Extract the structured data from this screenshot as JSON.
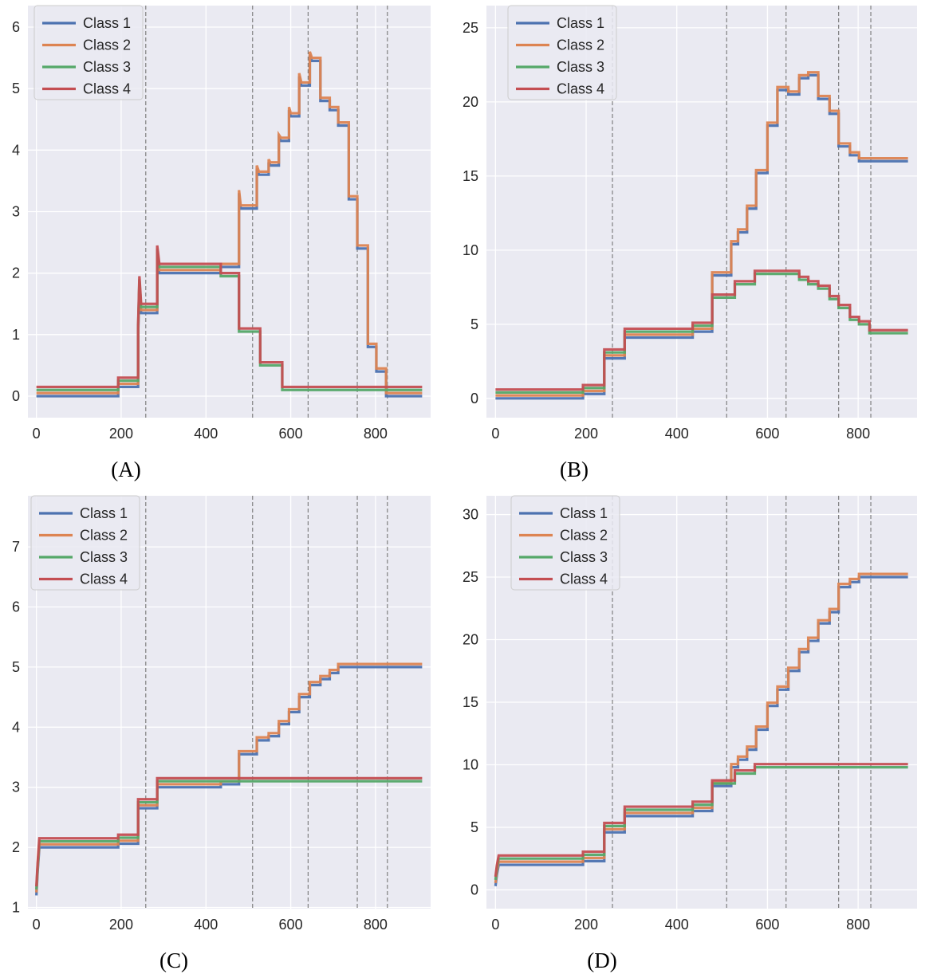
{
  "colors": {
    "background": "#eaeaf2",
    "grid": "#ffffff",
    "vline": "#808080",
    "class_colors": [
      "#4c72b0",
      "#dd8452",
      "#55a868",
      "#c44e52"
    ]
  },
  "chart_data": [
    {
      "type": "line",
      "label": "(A)",
      "series_names": [
        "Class 1",
        "Class 2",
        "Class 3",
        "Class 4"
      ],
      "xlim": [
        -20,
        930
      ],
      "ylim": [
        -0.35,
        6.35
      ],
      "xticks": [
        0,
        200,
        400,
        600,
        800
      ],
      "yticks": [
        0,
        1,
        2,
        3,
        4,
        5,
        6
      ],
      "vlines": [
        258,
        510,
        641,
        757,
        828
      ],
      "legend": "top-left",
      "offsets": [
        0.0,
        0.05,
        0.1,
        0.15
      ],
      "groups": [
        {
          "members": [
            0,
            1
          ],
          "points": [
            [
              0,
              0
            ],
            [
              193,
              0
            ],
            [
              193,
              0.15
            ],
            [
              240,
              0.15
            ],
            [
              240,
              1.0
            ],
            [
              243,
              1.8
            ],
            [
              247,
              1.35
            ],
            [
              285,
              1.35
            ],
            [
              285,
              2.2
            ],
            [
              290,
              2.0
            ],
            [
              435,
              2.0
            ],
            [
              435,
              2.1
            ],
            [
              478,
              2.1
            ],
            [
              478,
              3.3
            ],
            [
              482,
              3.05
            ],
            [
              520,
              3.05
            ],
            [
              520,
              3.7
            ],
            [
              525,
              3.6
            ],
            [
              548,
              3.6
            ],
            [
              548,
              3.8
            ],
            [
              552,
              3.75
            ],
            [
              572,
              3.75
            ],
            [
              572,
              4.2
            ],
            [
              577,
              4.15
            ],
            [
              596,
              4.15
            ],
            [
              596,
              4.65
            ],
            [
              600,
              4.55
            ],
            [
              620,
              4.55
            ],
            [
              620,
              5.2
            ],
            [
              625,
              5.05
            ],
            [
              645,
              5.05
            ],
            [
              645,
              5.55
            ],
            [
              650,
              5.45
            ],
            [
              670,
              5.45
            ],
            [
              670,
              4.8
            ],
            [
              692,
              4.8
            ],
            [
              692,
              4.65
            ],
            [
              712,
              4.65
            ],
            [
              712,
              4.4
            ],
            [
              737,
              4.4
            ],
            [
              737,
              3.2
            ],
            [
              757,
              3.2
            ],
            [
              757,
              2.4
            ],
            [
              782,
              2.4
            ],
            [
              782,
              0.8
            ],
            [
              802,
              0.8
            ],
            [
              802,
              0.4
            ],
            [
              825,
              0.4
            ],
            [
              825,
              0
            ],
            [
              910,
              0
            ]
          ]
        },
        {
          "members": [
            2,
            3
          ],
          "points": [
            [
              0,
              0
            ],
            [
              193,
              0
            ],
            [
              193,
              0.15
            ],
            [
              240,
              0.15
            ],
            [
              240,
              1.0
            ],
            [
              243,
              1.8
            ],
            [
              247,
              1.35
            ],
            [
              285,
              1.35
            ],
            [
              285,
              2.3
            ],
            [
              290,
              2.0
            ],
            [
              435,
              2.0
            ],
            [
              435,
              1.85
            ],
            [
              478,
              1.85
            ],
            [
              478,
              0.95
            ],
            [
              528,
              0.95
            ],
            [
              528,
              0.4
            ],
            [
              580,
              0.4
            ],
            [
              580,
              0
            ],
            [
              910,
              0
            ]
          ]
        }
      ]
    },
    {
      "type": "line",
      "label": "(B)",
      "series_names": [
        "Class 1",
        "Class 2",
        "Class 3",
        "Class 4"
      ],
      "xlim": [
        -20,
        930
      ],
      "ylim": [
        -1.3,
        26.5
      ],
      "xticks": [
        0,
        200,
        400,
        600,
        800
      ],
      "yticks": [
        0,
        5,
        10,
        15,
        20,
        25
      ],
      "vlines": [
        258,
        510,
        641,
        757,
        828
      ],
      "legend": "top-left",
      "offsets": [
        0.0,
        0.2,
        0.4,
        0.6
      ],
      "groups": [
        {
          "members": [
            0,
            1
          ],
          "points": [
            [
              0,
              0
            ],
            [
              193,
              0
            ],
            [
              193,
              0.3
            ],
            [
              240,
              0.3
            ],
            [
              240,
              2.7
            ],
            [
              285,
              2.7
            ],
            [
              285,
              4.1
            ],
            [
              435,
              4.1
            ],
            [
              435,
              4.5
            ],
            [
              478,
              4.5
            ],
            [
              478,
              8.3
            ],
            [
              520,
              8.3
            ],
            [
              520,
              10.4
            ],
            [
              535,
              10.4
            ],
            [
              535,
              11.2
            ],
            [
              555,
              11.2
            ],
            [
              555,
              12.8
            ],
            [
              575,
              12.8
            ],
            [
              575,
              15.2
            ],
            [
              600,
              15.2
            ],
            [
              600,
              18.4
            ],
            [
              622,
              18.4
            ],
            [
              622,
              20.8
            ],
            [
              646,
              20.8
            ],
            [
              646,
              20.5
            ],
            [
              670,
              20.5
            ],
            [
              670,
              21.6
            ],
            [
              690,
              21.6
            ],
            [
              690,
              21.8
            ],
            [
              712,
              21.8
            ],
            [
              712,
              20.2
            ],
            [
              737,
              20.2
            ],
            [
              737,
              19.2
            ],
            [
              757,
              19.2
            ],
            [
              757,
              17.0
            ],
            [
              782,
              17.0
            ],
            [
              782,
              16.4
            ],
            [
              802,
              16.4
            ],
            [
              802,
              16.0
            ],
            [
              910,
              16.0
            ]
          ]
        },
        {
          "members": [
            2,
            3
          ],
          "points": [
            [
              0,
              0
            ],
            [
              193,
              0
            ],
            [
              193,
              0.3
            ],
            [
              240,
              0.3
            ],
            [
              240,
              2.7
            ],
            [
              285,
              2.7
            ],
            [
              285,
              4.1
            ],
            [
              435,
              4.1
            ],
            [
              435,
              4.5
            ],
            [
              478,
              4.5
            ],
            [
              478,
              6.4
            ],
            [
              528,
              6.4
            ],
            [
              528,
              7.3
            ],
            [
              572,
              7.3
            ],
            [
              572,
              8.0
            ],
            [
              670,
              8.0
            ],
            [
              670,
              7.6
            ],
            [
              690,
              7.6
            ],
            [
              690,
              7.3
            ],
            [
              712,
              7.3
            ],
            [
              712,
              7.0
            ],
            [
              737,
              7.0
            ],
            [
              737,
              6.3
            ],
            [
              757,
              6.3
            ],
            [
              757,
              5.7
            ],
            [
              782,
              5.7
            ],
            [
              782,
              4.9
            ],
            [
              802,
              4.9
            ],
            [
              802,
              4.6
            ],
            [
              825,
              4.6
            ],
            [
              825,
              4.0
            ],
            [
              910,
              4.0
            ]
          ]
        }
      ]
    },
    {
      "type": "line",
      "label": "(C)",
      "series_names": [
        "Class 1",
        "Class 2",
        "Class 3",
        "Class 4"
      ],
      "xlim": [
        -20,
        930
      ],
      "ylim": [
        0.98,
        7.85
      ],
      "xticks": [
        0,
        200,
        400,
        600,
        800
      ],
      "yticks": [
        1,
        2,
        3,
        4,
        5,
        6,
        7
      ],
      "vlines": [
        258,
        510,
        641,
        757,
        828
      ],
      "legend": "top-left",
      "offsets": [
        0.0,
        0.05,
        0.1,
        0.15
      ],
      "groups": [
        {
          "members": [
            0,
            1
          ],
          "points": [
            [
              0,
              1.2
            ],
            [
              3,
              1.6
            ],
            [
              7,
              2.0
            ],
            [
              193,
              2.0
            ],
            [
              193,
              2.06
            ],
            [
              240,
              2.06
            ],
            [
              240,
              2.65
            ],
            [
              285,
              2.65
            ],
            [
              285,
              3.0
            ],
            [
              435,
              3.0
            ],
            [
              435,
              3.05
            ],
            [
              478,
              3.05
            ],
            [
              478,
              3.55
            ],
            [
              520,
              3.55
            ],
            [
              520,
              3.78
            ],
            [
              548,
              3.78
            ],
            [
              548,
              3.85
            ],
            [
              572,
              3.85
            ],
            [
              572,
              4.05
            ],
            [
              596,
              4.05
            ],
            [
              596,
              4.25
            ],
            [
              620,
              4.25
            ],
            [
              620,
              4.5
            ],
            [
              645,
              4.5
            ],
            [
              645,
              4.7
            ],
            [
              670,
              4.7
            ],
            [
              670,
              4.8
            ],
            [
              692,
              4.8
            ],
            [
              692,
              4.9
            ],
            [
              712,
              4.9
            ],
            [
              712,
              5.0
            ],
            [
              910,
              5.0
            ]
          ]
        },
        {
          "members": [
            2,
            3
          ],
          "points": [
            [
              0,
              1.2
            ],
            [
              3,
              1.6
            ],
            [
              7,
              2.0
            ],
            [
              193,
              2.0
            ],
            [
              193,
              2.06
            ],
            [
              240,
              2.06
            ],
            [
              240,
              2.65
            ],
            [
              285,
              2.65
            ],
            [
              285,
              3.0
            ],
            [
              910,
              3.0
            ]
          ]
        }
      ]
    },
    {
      "type": "line",
      "label": "(D)",
      "series_names": [
        "Class 1",
        "Class 2",
        "Class 3",
        "Class 4"
      ],
      "xlim": [
        -20,
        930
      ],
      "ylim": [
        -1.5,
        31.5
      ],
      "xticks": [
        0,
        200,
        400,
        600,
        800
      ],
      "yticks": [
        0,
        5,
        10,
        15,
        20,
        25,
        30
      ],
      "vlines": [
        258,
        510,
        641,
        757,
        828
      ],
      "legend": "top-left",
      "offsets": [
        0.0,
        0.25,
        0.5,
        0.75
      ],
      "groups": [
        {
          "members": [
            0,
            1
          ],
          "points": [
            [
              0,
              0.3
            ],
            [
              3,
              1.2
            ],
            [
              7,
              2.0
            ],
            [
              193,
              2.0
            ],
            [
              193,
              2.3
            ],
            [
              240,
              2.3
            ],
            [
              240,
              4.6
            ],
            [
              285,
              4.6
            ],
            [
              285,
              5.9
            ],
            [
              435,
              5.9
            ],
            [
              435,
              6.3
            ],
            [
              478,
              6.3
            ],
            [
              478,
              8.3
            ],
            [
              520,
              8.3
            ],
            [
              520,
              9.8
            ],
            [
              535,
              9.8
            ],
            [
              535,
              10.4
            ],
            [
              555,
              10.4
            ],
            [
              555,
              11.2
            ],
            [
              575,
              11.2
            ],
            [
              575,
              12.8
            ],
            [
              600,
              12.8
            ],
            [
              600,
              14.7
            ],
            [
              622,
              14.7
            ],
            [
              622,
              16.0
            ],
            [
              646,
              16.0
            ],
            [
              646,
              17.5
            ],
            [
              670,
              17.5
            ],
            [
              670,
              19.0
            ],
            [
              690,
              19.0
            ],
            [
              690,
              19.9
            ],
            [
              712,
              19.9
            ],
            [
              712,
              21.3
            ],
            [
              737,
              21.3
            ],
            [
              737,
              22.2
            ],
            [
              757,
              22.2
            ],
            [
              757,
              24.2
            ],
            [
              782,
              24.2
            ],
            [
              782,
              24.6
            ],
            [
              802,
              24.6
            ],
            [
              802,
              25.0
            ],
            [
              910,
              25.0
            ]
          ]
        },
        {
          "members": [
            2,
            3
          ],
          "points": [
            [
              0,
              0.3
            ],
            [
              3,
              1.2
            ],
            [
              7,
              2.0
            ],
            [
              193,
              2.0
            ],
            [
              193,
              2.3
            ],
            [
              240,
              2.3
            ],
            [
              240,
              4.6
            ],
            [
              285,
              4.6
            ],
            [
              285,
              5.9
            ],
            [
              435,
              5.9
            ],
            [
              435,
              6.3
            ],
            [
              478,
              6.3
            ],
            [
              478,
              8.0
            ],
            [
              528,
              8.0
            ],
            [
              528,
              8.8
            ],
            [
              572,
              8.8
            ],
            [
              572,
              9.3
            ],
            [
              910,
              9.3
            ]
          ]
        }
      ]
    }
  ]
}
